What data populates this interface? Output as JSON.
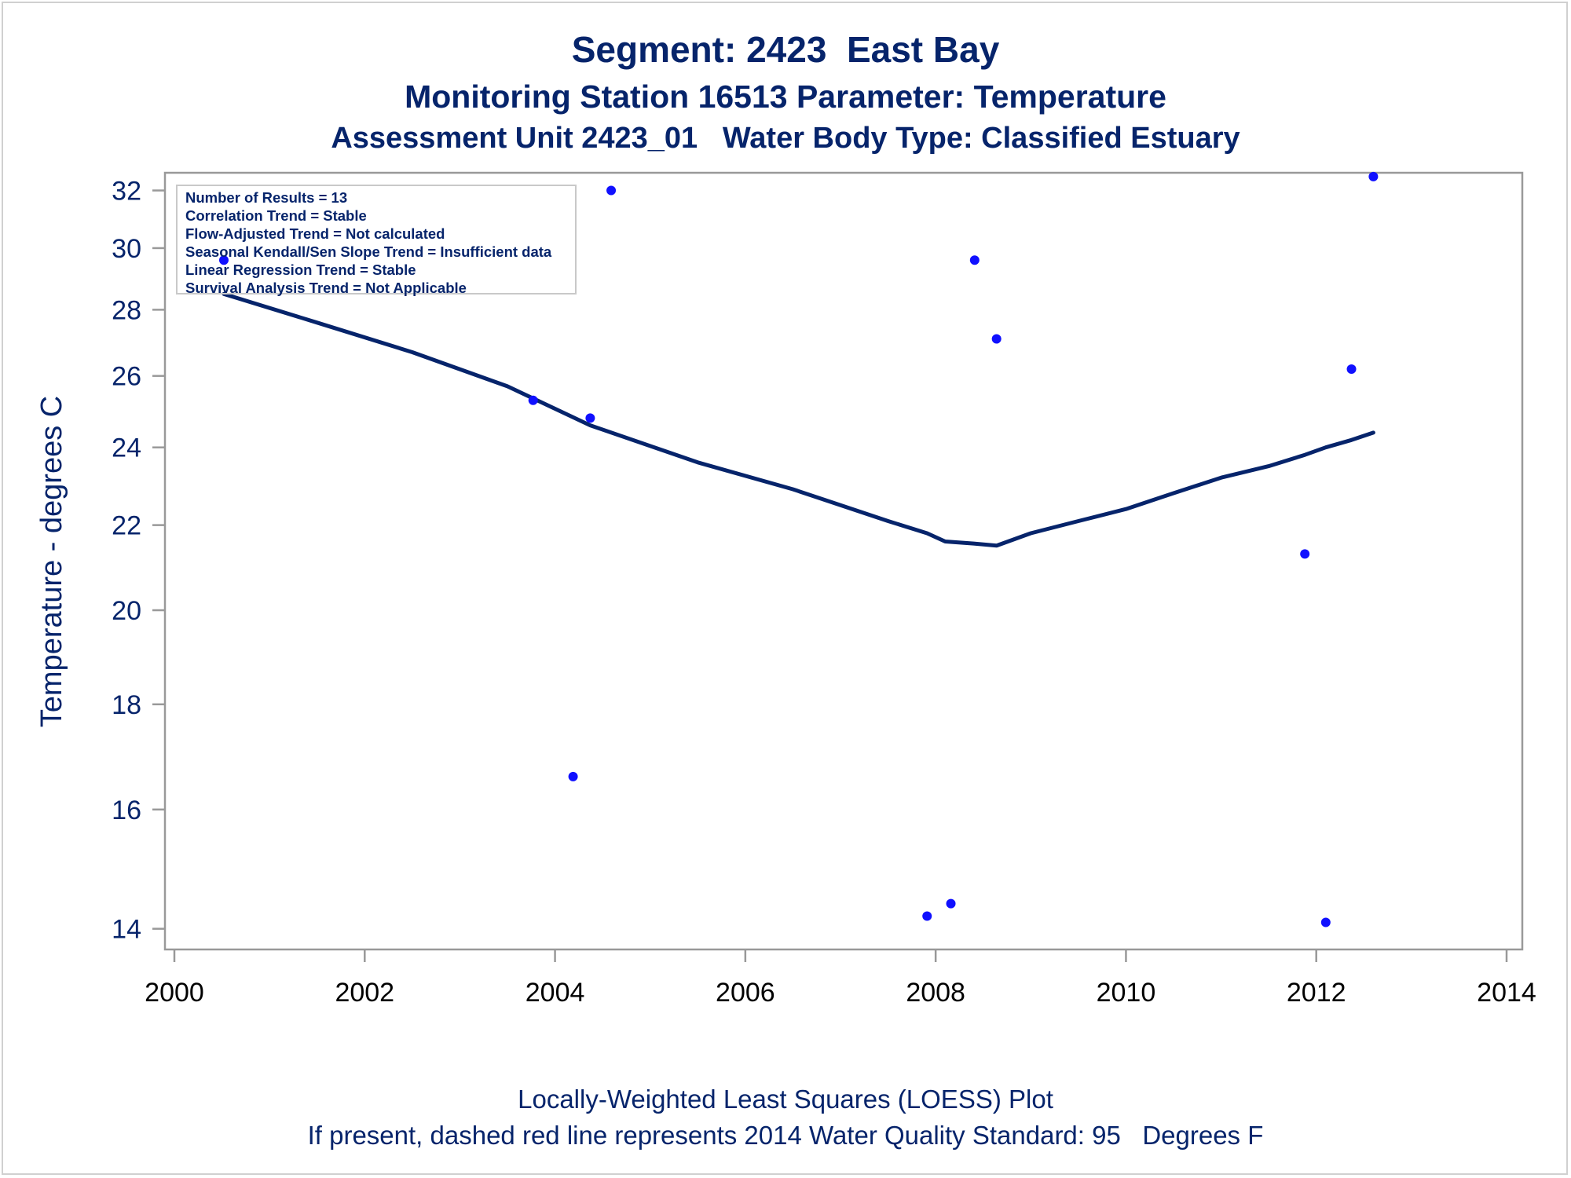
{
  "titles": {
    "line1": "Segment: 2423  East Bay",
    "line2": "Monitoring Station 16513 Parameter: Temperature",
    "line3": "Assessment Unit 2423_01   Water Body Type: Classified Estuary"
  },
  "stats_box": {
    "lines": [
      "Number of Results = 13",
      "Correlation Trend = Stable",
      "Flow-Adjusted Trend = Not calculated",
      "Seasonal Kendall/Sen Slope Trend = Insufficient data",
      "Linear Regression Trend = Stable",
      "Survival Analysis Trend = Not Applicable"
    ]
  },
  "footnotes": {
    "line1": "Locally-Weighted Least Squares (LOESS) Plot",
    "line2": "If present, dashed red line represents 2014 Water Quality Standard: 95   Degrees F"
  },
  "colors": {
    "text": "#06246b",
    "points": "#1010ff",
    "loess_line": "#06246b",
    "axis": "#999999"
  },
  "chart_data": {
    "type": "scatter",
    "xlabel": "",
    "ylabel": "Temperature - degrees C",
    "xlim": [
      2000,
      2014
    ],
    "ylim": [
      13.8,
      32.9
    ],
    "yscale": "log",
    "x_ticks": [
      "2000",
      "2002",
      "2004",
      "2006",
      "2008",
      "2010",
      "2012",
      "2014"
    ],
    "y_ticks": [
      "14",
      "16",
      "18",
      "20",
      "22",
      "24",
      "26",
      "28",
      "30",
      "32"
    ],
    "series": [
      {
        "type": "scatter",
        "points": [
          {
            "x": 2000.52,
            "y": 29.6
          },
          {
            "x": 2003.77,
            "y": 25.3
          },
          {
            "x": 2004.19,
            "y": 16.6
          },
          {
            "x": 2004.37,
            "y": 24.8
          },
          {
            "x": 2004.59,
            "y": 32.0
          },
          {
            "x": 2007.91,
            "y": 14.2
          },
          {
            "x": 2008.16,
            "y": 14.4
          },
          {
            "x": 2008.41,
            "y": 29.6
          },
          {
            "x": 2008.64,
            "y": 27.1
          },
          {
            "x": 2011.88,
            "y": 21.3
          },
          {
            "x": 2012.1,
            "y": 14.1
          },
          {
            "x": 2012.37,
            "y": 26.2
          },
          {
            "x": 2012.6,
            "y": 32.5
          }
        ]
      },
      {
        "type": "line",
        "points": [
          {
            "x": 2000.52,
            "y": 28.5
          },
          {
            "x": 2001.5,
            "y": 27.6
          },
          {
            "x": 2002.5,
            "y": 26.7
          },
          {
            "x": 2003.5,
            "y": 25.7
          },
          {
            "x": 2004.37,
            "y": 24.6
          },
          {
            "x": 2005.5,
            "y": 23.6
          },
          {
            "x": 2006.5,
            "y": 22.9
          },
          {
            "x": 2007.5,
            "y": 22.1
          },
          {
            "x": 2007.91,
            "y": 21.8
          },
          {
            "x": 2008.1,
            "y": 21.6
          },
          {
            "x": 2008.4,
            "y": 21.55
          },
          {
            "x": 2008.64,
            "y": 21.5
          },
          {
            "x": 2009.0,
            "y": 21.8
          },
          {
            "x": 2009.5,
            "y": 22.1
          },
          {
            "x": 2010.0,
            "y": 22.4
          },
          {
            "x": 2010.5,
            "y": 22.8
          },
          {
            "x": 2011.0,
            "y": 23.2
          },
          {
            "x": 2011.5,
            "y": 23.5
          },
          {
            "x": 2011.88,
            "y": 23.8
          },
          {
            "x": 2012.1,
            "y": 24.0
          },
          {
            "x": 2012.37,
            "y": 24.2
          },
          {
            "x": 2012.6,
            "y": 24.4
          }
        ]
      }
    ]
  }
}
